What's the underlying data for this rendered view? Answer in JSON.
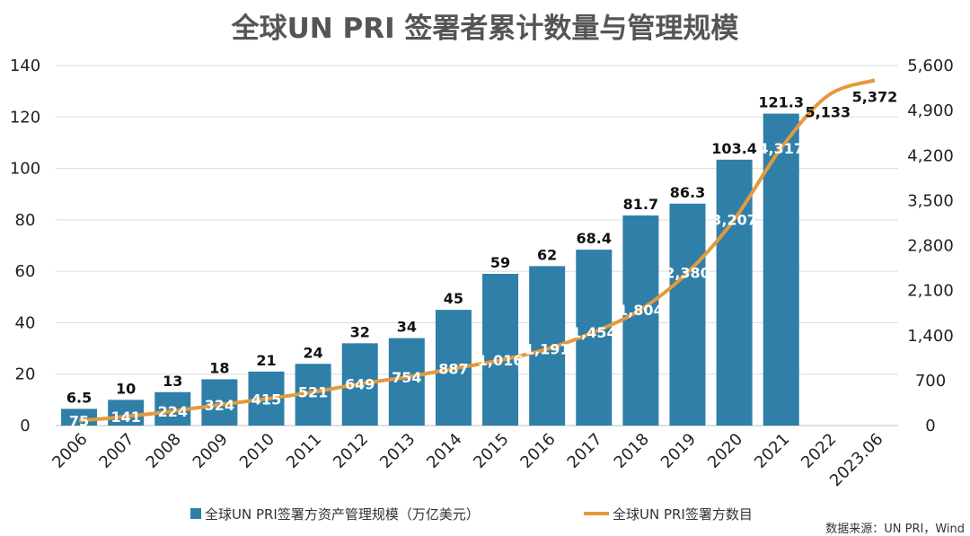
{
  "chart_data": {
    "type": "bar",
    "title": "全球UN PRI 签署者累计数量与管理规模",
    "categories": [
      "2006",
      "2007",
      "2008",
      "2009",
      "2010",
      "2011",
      "2012",
      "2013",
      "2014",
      "2015",
      "2016",
      "2017",
      "2018",
      "2019",
      "2020",
      "2021",
      "2022",
      "2023.06"
    ],
    "ylim": [
      0,
      140
    ],
    "y2lim": [
      0,
      5600
    ],
    "y_ticks": [
      "0",
      "20",
      "40",
      "60",
      "80",
      "100",
      "120",
      "140"
    ],
    "y2_ticks": [
      "0",
      "700",
      "1,400",
      "2,100",
      "2,800",
      "3,500",
      "4,200",
      "4,900",
      "5,600"
    ],
    "grid": true,
    "legend_position": "bottom",
    "series": [
      {
        "name": "全球UN PRI签署方资产管理规模（万亿美元）",
        "type": "bar",
        "axis": "left",
        "color": "#2f7fa8",
        "values": [
          6.5,
          10,
          13,
          18,
          21,
          24,
          32,
          34,
          45,
          59,
          62,
          68.4,
          81.7,
          86.3,
          103.4,
          121.3,
          null,
          null
        ],
        "labels": [
          "6.5",
          "10",
          "13",
          "18",
          "21",
          "24",
          "32",
          "34",
          "45",
          "59",
          "62",
          "68.4",
          "81.7",
          "86.3",
          "103.4",
          "121.3",
          "",
          ""
        ]
      },
      {
        "name": "全球UN PRI签署方数目",
        "type": "line",
        "axis": "right",
        "color": "#e39a3c",
        "values": [
          75,
          141,
          224,
          324,
          415,
          521,
          649,
          754,
          887,
          1016,
          1191,
          1454,
          1804,
          2380,
          3207,
          4317,
          5133,
          5372
        ],
        "labels": [
          "75",
          "141",
          "224",
          "324",
          "415",
          "521",
          "649",
          "754",
          "887",
          "1,016",
          "1,191",
          "1,454",
          "1,804",
          "2,380",
          "3,207",
          "4,317",
          "5,133",
          "5,372"
        ]
      }
    ],
    "source": "数据来源：UN PRI，Wind"
  }
}
